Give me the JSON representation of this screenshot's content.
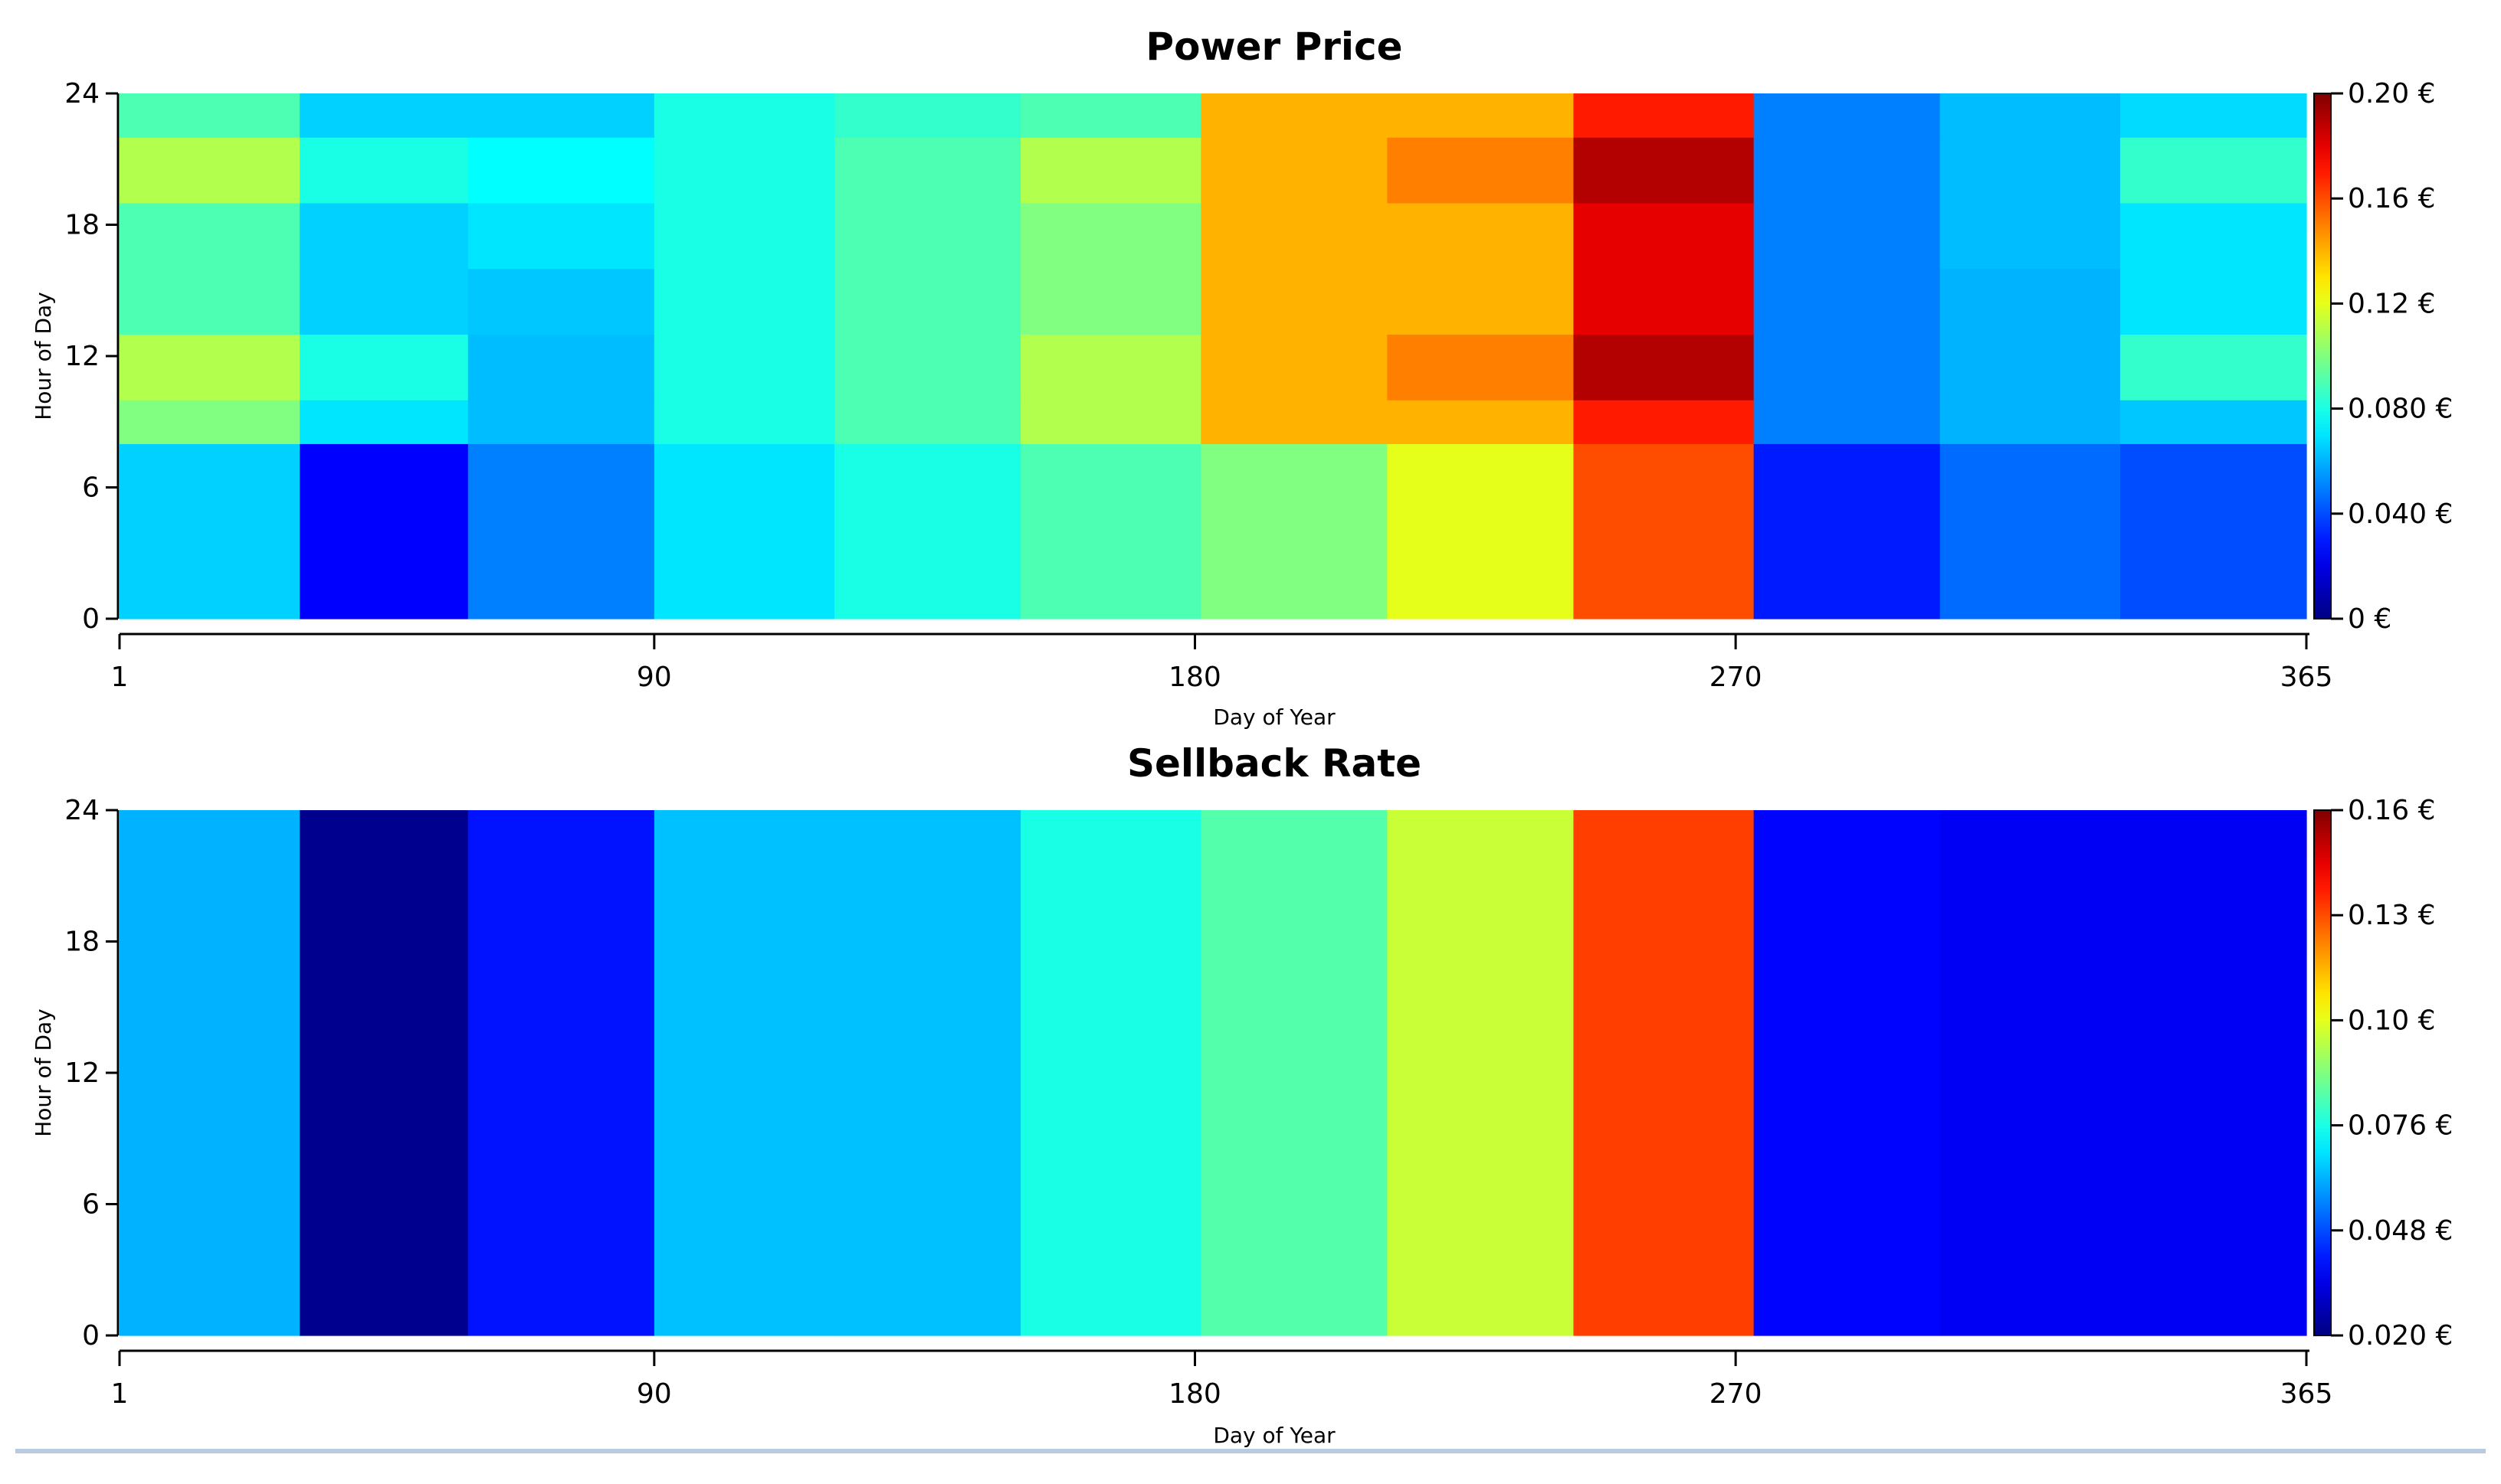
{
  "chart_data": [
    {
      "type": "heatmap",
      "title": "Power Price",
      "xlabel": "Day of Year",
      "ylabel": "Hour of Day",
      "xlim": [
        1,
        365
      ],
      "ylim": [
        0,
        24
      ],
      "xticks": [
        "1",
        "90",
        "180",
        "270",
        "365"
      ],
      "yticks": [
        "0",
        "6",
        "12",
        "18",
        "24"
      ],
      "colorbar": {
        "range": [
          0,
          0.2
        ],
        "tick_labels": [
          "0 €",
          "0.040 €",
          "0.080 €",
          "0.12 €",
          "0.16 €",
          "0.20 €"
        ]
      },
      "month_starts": [
        1,
        31,
        59,
        90,
        120,
        151,
        181,
        212,
        243,
        273,
        304,
        334,
        365
      ],
      "hour_bands": [
        0,
        8,
        10,
        13,
        16,
        19,
        22,
        24
      ],
      "values": [
        [
          0.066,
          0.025,
          0.05,
          0.07,
          0.08,
          0.09,
          0.1,
          0.12,
          0.16,
          0.03,
          0.046,
          0.04
        ],
        [
          0.1,
          0.07,
          0.062,
          0.08,
          0.09,
          0.11,
          0.14,
          0.14,
          0.17,
          0.05,
          0.06,
          0.064
        ],
        [
          0.11,
          0.08,
          0.062,
          0.08,
          0.09,
          0.11,
          0.14,
          0.15,
          0.19,
          0.05,
          0.06,
          0.085
        ],
        [
          0.09,
          0.066,
          0.064,
          0.08,
          0.09,
          0.1,
          0.14,
          0.14,
          0.18,
          0.05,
          0.06,
          0.07
        ],
        [
          0.09,
          0.066,
          0.07,
          0.08,
          0.09,
          0.1,
          0.14,
          0.14,
          0.18,
          0.05,
          0.062,
          0.07
        ],
        [
          0.11,
          0.08,
          0.075,
          0.08,
          0.09,
          0.11,
          0.14,
          0.15,
          0.19,
          0.05,
          0.062,
          0.085
        ],
        [
          0.09,
          0.066,
          0.066,
          0.08,
          0.085,
          0.09,
          0.14,
          0.14,
          0.17,
          0.05,
          0.062,
          0.068
        ]
      ]
    },
    {
      "type": "heatmap",
      "title": "Sellback Rate",
      "xlabel": "Day of Year",
      "ylabel": "Hour of Day",
      "xlim": [
        1,
        365
      ],
      "ylim": [
        0,
        24
      ],
      "xticks": [
        "1",
        "90",
        "180",
        "270",
        "365"
      ],
      "yticks": [
        "0",
        "6",
        "12",
        "18",
        "24"
      ],
      "colorbar": {
        "range": [
          0.02,
          0.16
        ],
        "tick_labels": [
          "0.020 €",
          "0.048 €",
          "0.076 €",
          "0.10 €",
          "0.13 €",
          "0.16 €"
        ]
      },
      "month_starts": [
        1,
        31,
        59,
        90,
        120,
        151,
        181,
        212,
        243,
        273,
        304,
        334,
        365
      ],
      "hour_bands": [
        0,
        24
      ],
      "values": [
        [
          0.062,
          0.022,
          0.04,
          0.064,
          0.064,
          0.076,
          0.084,
          0.1,
          0.134,
          0.038,
          0.036,
          0.036
        ]
      ]
    }
  ]
}
